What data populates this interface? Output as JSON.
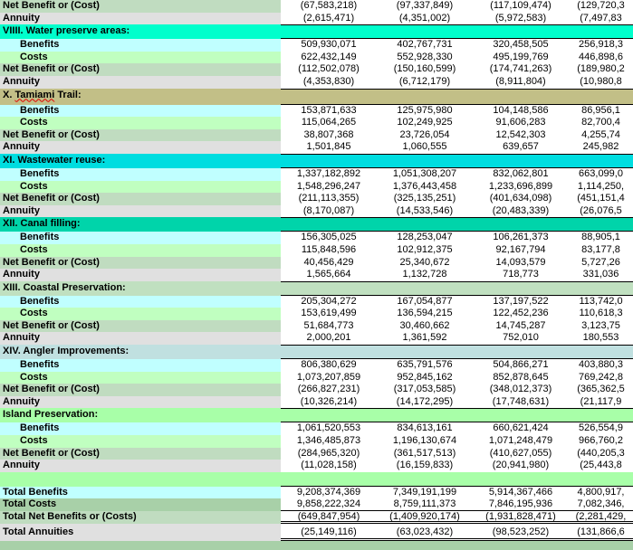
{
  "colors": {
    "net": "#c0dcc0",
    "annuity": "#e0e0e0",
    "benefits": "#c0ffff",
    "costs": "#c0ffc0",
    "total_costs": "#a8d0a8",
    "blank": "#a8ffa8"
  },
  "rows": [
    {
      "type": "net",
      "label": "Net Benefit or (Cost)",
      "values": [
        "(67,583,218)",
        "(97,337,849)",
        "(117,109,474)",
        "(129,720,3"
      ]
    },
    {
      "type": "annuity",
      "label": "Annuity",
      "values": [
        "(2,615,471)",
        "(4,351,002)",
        "(5,972,583)",
        "(7,497,83"
      ]
    },
    {
      "type": "header",
      "label": "VIIII. Water preserve areas:",
      "color": "#00ffcc"
    },
    {
      "type": "benefits",
      "label": "Benefits",
      "values": [
        "509,930,071",
        "402,767,731",
        "320,458,505",
        "256,918,3"
      ]
    },
    {
      "type": "costs",
      "label": "Costs",
      "values": [
        "622,432,149",
        "552,928,330",
        "495,199,769",
        "446,898,6"
      ]
    },
    {
      "type": "net",
      "label": "Net Benefit or (Cost)",
      "values": [
        "(112,502,078)",
        "(150,160,599)",
        "(174,741,263)",
        "(189,980,2"
      ]
    },
    {
      "type": "annuity",
      "label": "Annuity",
      "values": [
        "(4,353,830)",
        "(6,712,179)",
        "(8,911,804)",
        "(10,980,8"
      ]
    },
    {
      "type": "header",
      "label": "X. Tamiami Trail:",
      "color": "#c2bf87",
      "tall": true
    },
    {
      "type": "benefits",
      "label": "Benefits",
      "values": [
        "153,871,633",
        "125,975,980",
        "104,148,586",
        "86,956,1"
      ]
    },
    {
      "type": "costs",
      "label": "Costs",
      "values": [
        "115,064,265",
        "102,249,925",
        "91,606,283",
        "82,700,4"
      ]
    },
    {
      "type": "net",
      "label": "Net Benefit or (Cost)",
      "values": [
        "38,807,368",
        "23,726,054",
        "12,542,303",
        "4,255,74"
      ]
    },
    {
      "type": "annuity",
      "label": "Annuity",
      "values": [
        "1,501,845",
        "1,060,555",
        "639,657",
        "245,982"
      ]
    },
    {
      "type": "header",
      "label": "XI. Wastewater reuse:",
      "color": "#00dde0"
    },
    {
      "type": "benefits",
      "label": "Benefits",
      "values": [
        "1,337,182,892",
        "1,051,308,207",
        "832,062,801",
        "663,099,0"
      ]
    },
    {
      "type": "costs",
      "label": "Costs",
      "values": [
        "1,548,296,247",
        "1,376,443,458",
        "1,233,696,899",
        "1,114,250,"
      ]
    },
    {
      "type": "net",
      "label": "Net Benefit or (Cost)",
      "values": [
        "(211,113,355)",
        "(325,135,251)",
        "(401,634,098)",
        "(451,151,4"
      ]
    },
    {
      "type": "annuity",
      "label": "Annuity",
      "values": [
        "(8,170,087)",
        "(14,533,546)",
        "(20,483,339)",
        "(26,076,5"
      ]
    },
    {
      "type": "header",
      "label": "XII.  Canal filling:",
      "color": "#00d4aa"
    },
    {
      "type": "benefits",
      "label": "Benefits",
      "values": [
        "156,305,025",
        "128,253,047",
        "106,261,373",
        "88,905,1"
      ]
    },
    {
      "type": "costs",
      "label": "Costs",
      "values": [
        "115,848,596",
        "102,912,375",
        "92,167,794",
        "83,177,8"
      ]
    },
    {
      "type": "net",
      "label": "Net Benefit or (Cost)",
      "values": [
        "40,456,429",
        "25,340,672",
        "14,093,579",
        "5,727,26"
      ]
    },
    {
      "type": "annuity",
      "label": "Annuity",
      "values": [
        "1,565,664",
        "1,132,728",
        "718,773",
        "331,036"
      ]
    },
    {
      "type": "header",
      "label": "XIII. Coastal Preservation:",
      "color": "#c0e0c0"
    },
    {
      "type": "benefits",
      "label": "Benefits",
      "values": [
        "205,304,272",
        "167,054,877",
        "137,197,522",
        "113,742,0"
      ]
    },
    {
      "type": "costs",
      "label": "Costs",
      "values": [
        "153,619,499",
        "136,594,215",
        "122,452,236",
        "110,618,3"
      ]
    },
    {
      "type": "net",
      "label": "Net Benefit or (Cost)",
      "values": [
        "51,684,773",
        "30,460,662",
        "14,745,287",
        "3,123,75"
      ]
    },
    {
      "type": "annuity",
      "label": "Annuity",
      "values": [
        "2,000,201",
        "1,361,592",
        "752,010",
        "180,553"
      ]
    },
    {
      "type": "header",
      "label": "XIV. Angler Improvements:",
      "color": "#c0e0e0"
    },
    {
      "type": "benefits",
      "label": "Benefits",
      "values": [
        "806,380,629",
        "635,791,576",
        "504,866,271",
        "403,880,3"
      ]
    },
    {
      "type": "costs",
      "label": "Costs",
      "values": [
        "1,073,207,859",
        "952,845,162",
        "852,878,645",
        "769,242,8"
      ]
    },
    {
      "type": "net",
      "label": "Net Benefit or (Cost)",
      "values": [
        "(266,827,231)",
        "(317,053,585)",
        "(348,012,373)",
        "(365,362,5"
      ]
    },
    {
      "type": "annuity",
      "label": "Annuity",
      "values": [
        "(10,326,214)",
        "(14,172,295)",
        "(17,748,631)",
        "(21,117,9"
      ]
    },
    {
      "type": "header",
      "label": "Island Preservation:",
      "color": "#a8ffa8"
    },
    {
      "type": "benefits",
      "label": "Benefits",
      "values": [
        "1,061,520,553",
        "834,613,161",
        "660,621,424",
        "526,554,9"
      ]
    },
    {
      "type": "costs",
      "label": "Costs",
      "values": [
        "1,346,485,873",
        "1,196,130,674",
        "1,071,248,479",
        "966,760,2"
      ]
    },
    {
      "type": "net",
      "label": "Net Benefit or (Cost)",
      "values": [
        "(284,965,320)",
        "(361,517,513)",
        "(410,627,055)",
        "(440,205,3"
      ]
    },
    {
      "type": "annuity",
      "label": "Annuity",
      "values": [
        "(11,028,158)",
        "(16,159,833)",
        "(20,941,980)",
        "(25,443,8"
      ]
    },
    {
      "type": "blank",
      "label": ""
    },
    {
      "type": "tben",
      "label": "Total Benefits",
      "values": [
        "9,208,374,369",
        "7,349,191,199",
        "5,914,367,466",
        "4,800,917,"
      ]
    },
    {
      "type": "tcost",
      "label": "Total Costs",
      "values": [
        "9,858,222,324",
        "8,759,111,373",
        "7,846,195,936",
        "7,082,346,"
      ]
    },
    {
      "type": "tnet",
      "label": "Total Net Benefits or  (Costs)",
      "values": [
        "(649,847,954)",
        "(1,409,920,174)",
        "(1,931,828,471)",
        "(2,281,429,"
      ]
    },
    {
      "type": "tann",
      "label": "Total Annuities",
      "values": [
        "(25,149,116)",
        "(63,023,432)",
        "(98,523,252)",
        "(131,866,6"
      ]
    },
    {
      "type": "bottom",
      "label": ""
    }
  ]
}
